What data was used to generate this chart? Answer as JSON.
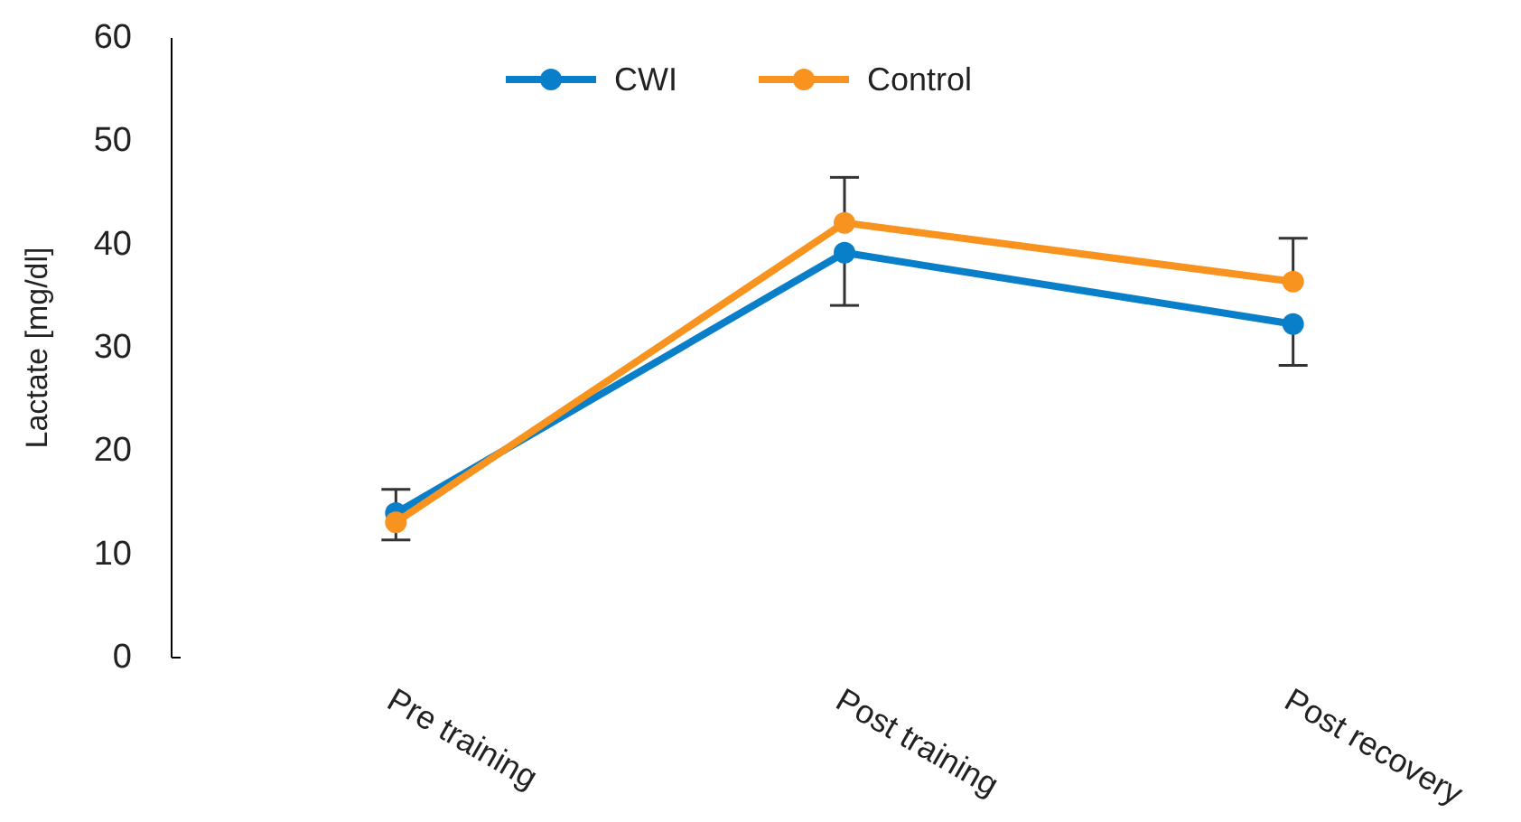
{
  "chart_data": {
    "type": "line",
    "ylabel": "Lactate [mg/dl]",
    "categories": [
      "Pre training",
      "Post training",
      "Post recovery"
    ],
    "series": [
      {
        "name": "CWI",
        "color": "#0a7fc9",
        "values": [
          14.0,
          39.2,
          32.3
        ],
        "errors": [
          [
            14.0,
            16.3
          ],
          [
            34.1,
            39.2
          ],
          [
            28.3,
            32.3
          ]
        ]
      },
      {
        "name": "Control",
        "color": "#f7931e",
        "values": [
          13.1,
          42.1,
          36.4
        ],
        "errors": [
          [
            11.4,
            13.1
          ],
          [
            42.1,
            46.5
          ],
          [
            36.4,
            40.6
          ]
        ]
      }
    ],
    "ylim": [
      0,
      60
    ],
    "yticks": [
      0,
      10,
      20,
      30,
      40,
      50,
      60
    ],
    "grid": false,
    "legend": "top",
    "marker": "circle",
    "line_style": "solid"
  }
}
